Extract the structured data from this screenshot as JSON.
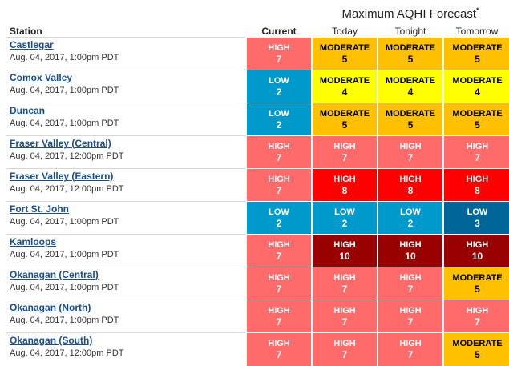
{
  "header": {
    "forecast_title": "Maximum AQHI Forecast",
    "forecast_mark": "*",
    "col_station": "Station",
    "col_current": "Current",
    "col_today": "Today",
    "col_tonight": "Tonight",
    "col_tomorrow": "Tomorrow"
  },
  "colors": {
    "HIGH": "#ff6b6b",
    "HIGH8": "#ff0000",
    "HIGH10": "#990000",
    "MODERATE": "#ffcc00",
    "MODERATE4": "#ffff00",
    "LOW": "#0099cc",
    "LOW3": "#006699"
  },
  "stations": [
    {
      "name": "Castlegar",
      "time": "Aug. 04, 2017, 1:00pm PDT",
      "values": [
        {
          "level": "HIGH",
          "value": "7",
          "color": "#ff6b6b",
          "text": "#ffffff"
        },
        {
          "level": "MODERATE",
          "value": "5",
          "color": "#ffc000",
          "text": "#000000"
        },
        {
          "level": "MODERATE",
          "value": "5",
          "color": "#ffc000",
          "text": "#000000"
        },
        {
          "level": "MODERATE",
          "value": "5",
          "color": "#ffc000",
          "text": "#000000"
        }
      ]
    },
    {
      "name": "Comox Valley",
      "time": "Aug. 04, 2017, 1:00pm PDT",
      "values": [
        {
          "level": "LOW",
          "value": "2",
          "color": "#0099cc",
          "text": "#ffffff"
        },
        {
          "level": "MODERATE",
          "value": "4",
          "color": "#ffff00",
          "text": "#000000"
        },
        {
          "level": "MODERATE",
          "value": "4",
          "color": "#ffff00",
          "text": "#000000"
        },
        {
          "level": "MODERATE",
          "value": "4",
          "color": "#ffff00",
          "text": "#000000"
        }
      ]
    },
    {
      "name": "Duncan",
      "time": "Aug. 04, 2017, 1:00pm PDT",
      "values": [
        {
          "level": "LOW",
          "value": "2",
          "color": "#0099cc",
          "text": "#ffffff"
        },
        {
          "level": "MODERATE",
          "value": "5",
          "color": "#ffc000",
          "text": "#000000"
        },
        {
          "level": "MODERATE",
          "value": "5",
          "color": "#ffc000",
          "text": "#000000"
        },
        {
          "level": "MODERATE",
          "value": "5",
          "color": "#ffc000",
          "text": "#000000"
        }
      ]
    },
    {
      "name": "Fraser Valley (Central)",
      "time": "Aug. 04, 2017, 12:00pm PDT",
      "values": [
        {
          "level": "HIGH",
          "value": "7",
          "color": "#ff6b6b",
          "text": "#ffffff"
        },
        {
          "level": "HIGH",
          "value": "7",
          "color": "#ff6b6b",
          "text": "#ffffff"
        },
        {
          "level": "HIGH",
          "value": "7",
          "color": "#ff6b6b",
          "text": "#ffffff"
        },
        {
          "level": "HIGH",
          "value": "7",
          "color": "#ff6b6b",
          "text": "#ffffff"
        }
      ]
    },
    {
      "name": "Fraser Valley (Eastern)",
      "time": "Aug. 04, 2017, 12:00pm PDT",
      "values": [
        {
          "level": "HIGH",
          "value": "7",
          "color": "#ff6b6b",
          "text": "#ffffff"
        },
        {
          "level": "HIGH",
          "value": "8",
          "color": "#ff0000",
          "text": "#ffffff"
        },
        {
          "level": "HIGH",
          "value": "8",
          "color": "#ff0000",
          "text": "#ffffff"
        },
        {
          "level": "HIGH",
          "value": "8",
          "color": "#ff0000",
          "text": "#ffffff"
        }
      ]
    },
    {
      "name": "Fort St. John",
      "time": "Aug. 04, 2017, 1:00pm PDT",
      "values": [
        {
          "level": "LOW",
          "value": "2",
          "color": "#0099cc",
          "text": "#ffffff"
        },
        {
          "level": "LOW",
          "value": "2",
          "color": "#0099cc",
          "text": "#ffffff"
        },
        {
          "level": "LOW",
          "value": "2",
          "color": "#0099cc",
          "text": "#ffffff"
        },
        {
          "level": "LOW",
          "value": "3",
          "color": "#006699",
          "text": "#ffffff"
        }
      ]
    },
    {
      "name": "Kamloops",
      "time": "Aug. 04, 2017, 1:00pm PDT",
      "values": [
        {
          "level": "HIGH",
          "value": "7",
          "color": "#ff6b6b",
          "text": "#ffffff"
        },
        {
          "level": "HIGH",
          "value": "10",
          "color": "#990000",
          "text": "#ffffff"
        },
        {
          "level": "HIGH",
          "value": "10",
          "color": "#990000",
          "text": "#ffffff"
        },
        {
          "level": "HIGH",
          "value": "10",
          "color": "#990000",
          "text": "#ffffff"
        }
      ]
    },
    {
      "name": "Okanagan (Central)",
      "time": "Aug. 04, 2017, 1:00pm PDT",
      "values": [
        {
          "level": "HIGH",
          "value": "7",
          "color": "#ff6b6b",
          "text": "#ffffff"
        },
        {
          "level": "HIGH",
          "value": "7",
          "color": "#ff6b6b",
          "text": "#ffffff"
        },
        {
          "level": "HIGH",
          "value": "7",
          "color": "#ff6b6b",
          "text": "#ffffff"
        },
        {
          "level": "MODERATE",
          "value": "5",
          "color": "#ffc000",
          "text": "#000000"
        }
      ]
    },
    {
      "name": "Okanagan (North)",
      "time": "Aug. 04, 2017, 1:00pm PDT",
      "values": [
        {
          "level": "HIGH",
          "value": "7",
          "color": "#ff6b6b",
          "text": "#ffffff"
        },
        {
          "level": "HIGH",
          "value": "7",
          "color": "#ff6b6b",
          "text": "#ffffff"
        },
        {
          "level": "HIGH",
          "value": "7",
          "color": "#ff6b6b",
          "text": "#ffffff"
        },
        {
          "level": "HIGH",
          "value": "7",
          "color": "#ff6b6b",
          "text": "#ffffff"
        }
      ]
    },
    {
      "name": "Okanagan (South)",
      "time": "Aug. 04, 2017, 12:00pm PDT",
      "values": [
        {
          "level": "HIGH",
          "value": "7",
          "color": "#ff6b6b",
          "text": "#ffffff"
        },
        {
          "level": "HIGH",
          "value": "7",
          "color": "#ff6b6b",
          "text": "#ffffff"
        },
        {
          "level": "HIGH",
          "value": "7",
          "color": "#ff6b6b",
          "text": "#ffffff"
        },
        {
          "level": "MODERATE",
          "value": "5",
          "color": "#ffc000",
          "text": "#000000"
        }
      ]
    }
  ]
}
